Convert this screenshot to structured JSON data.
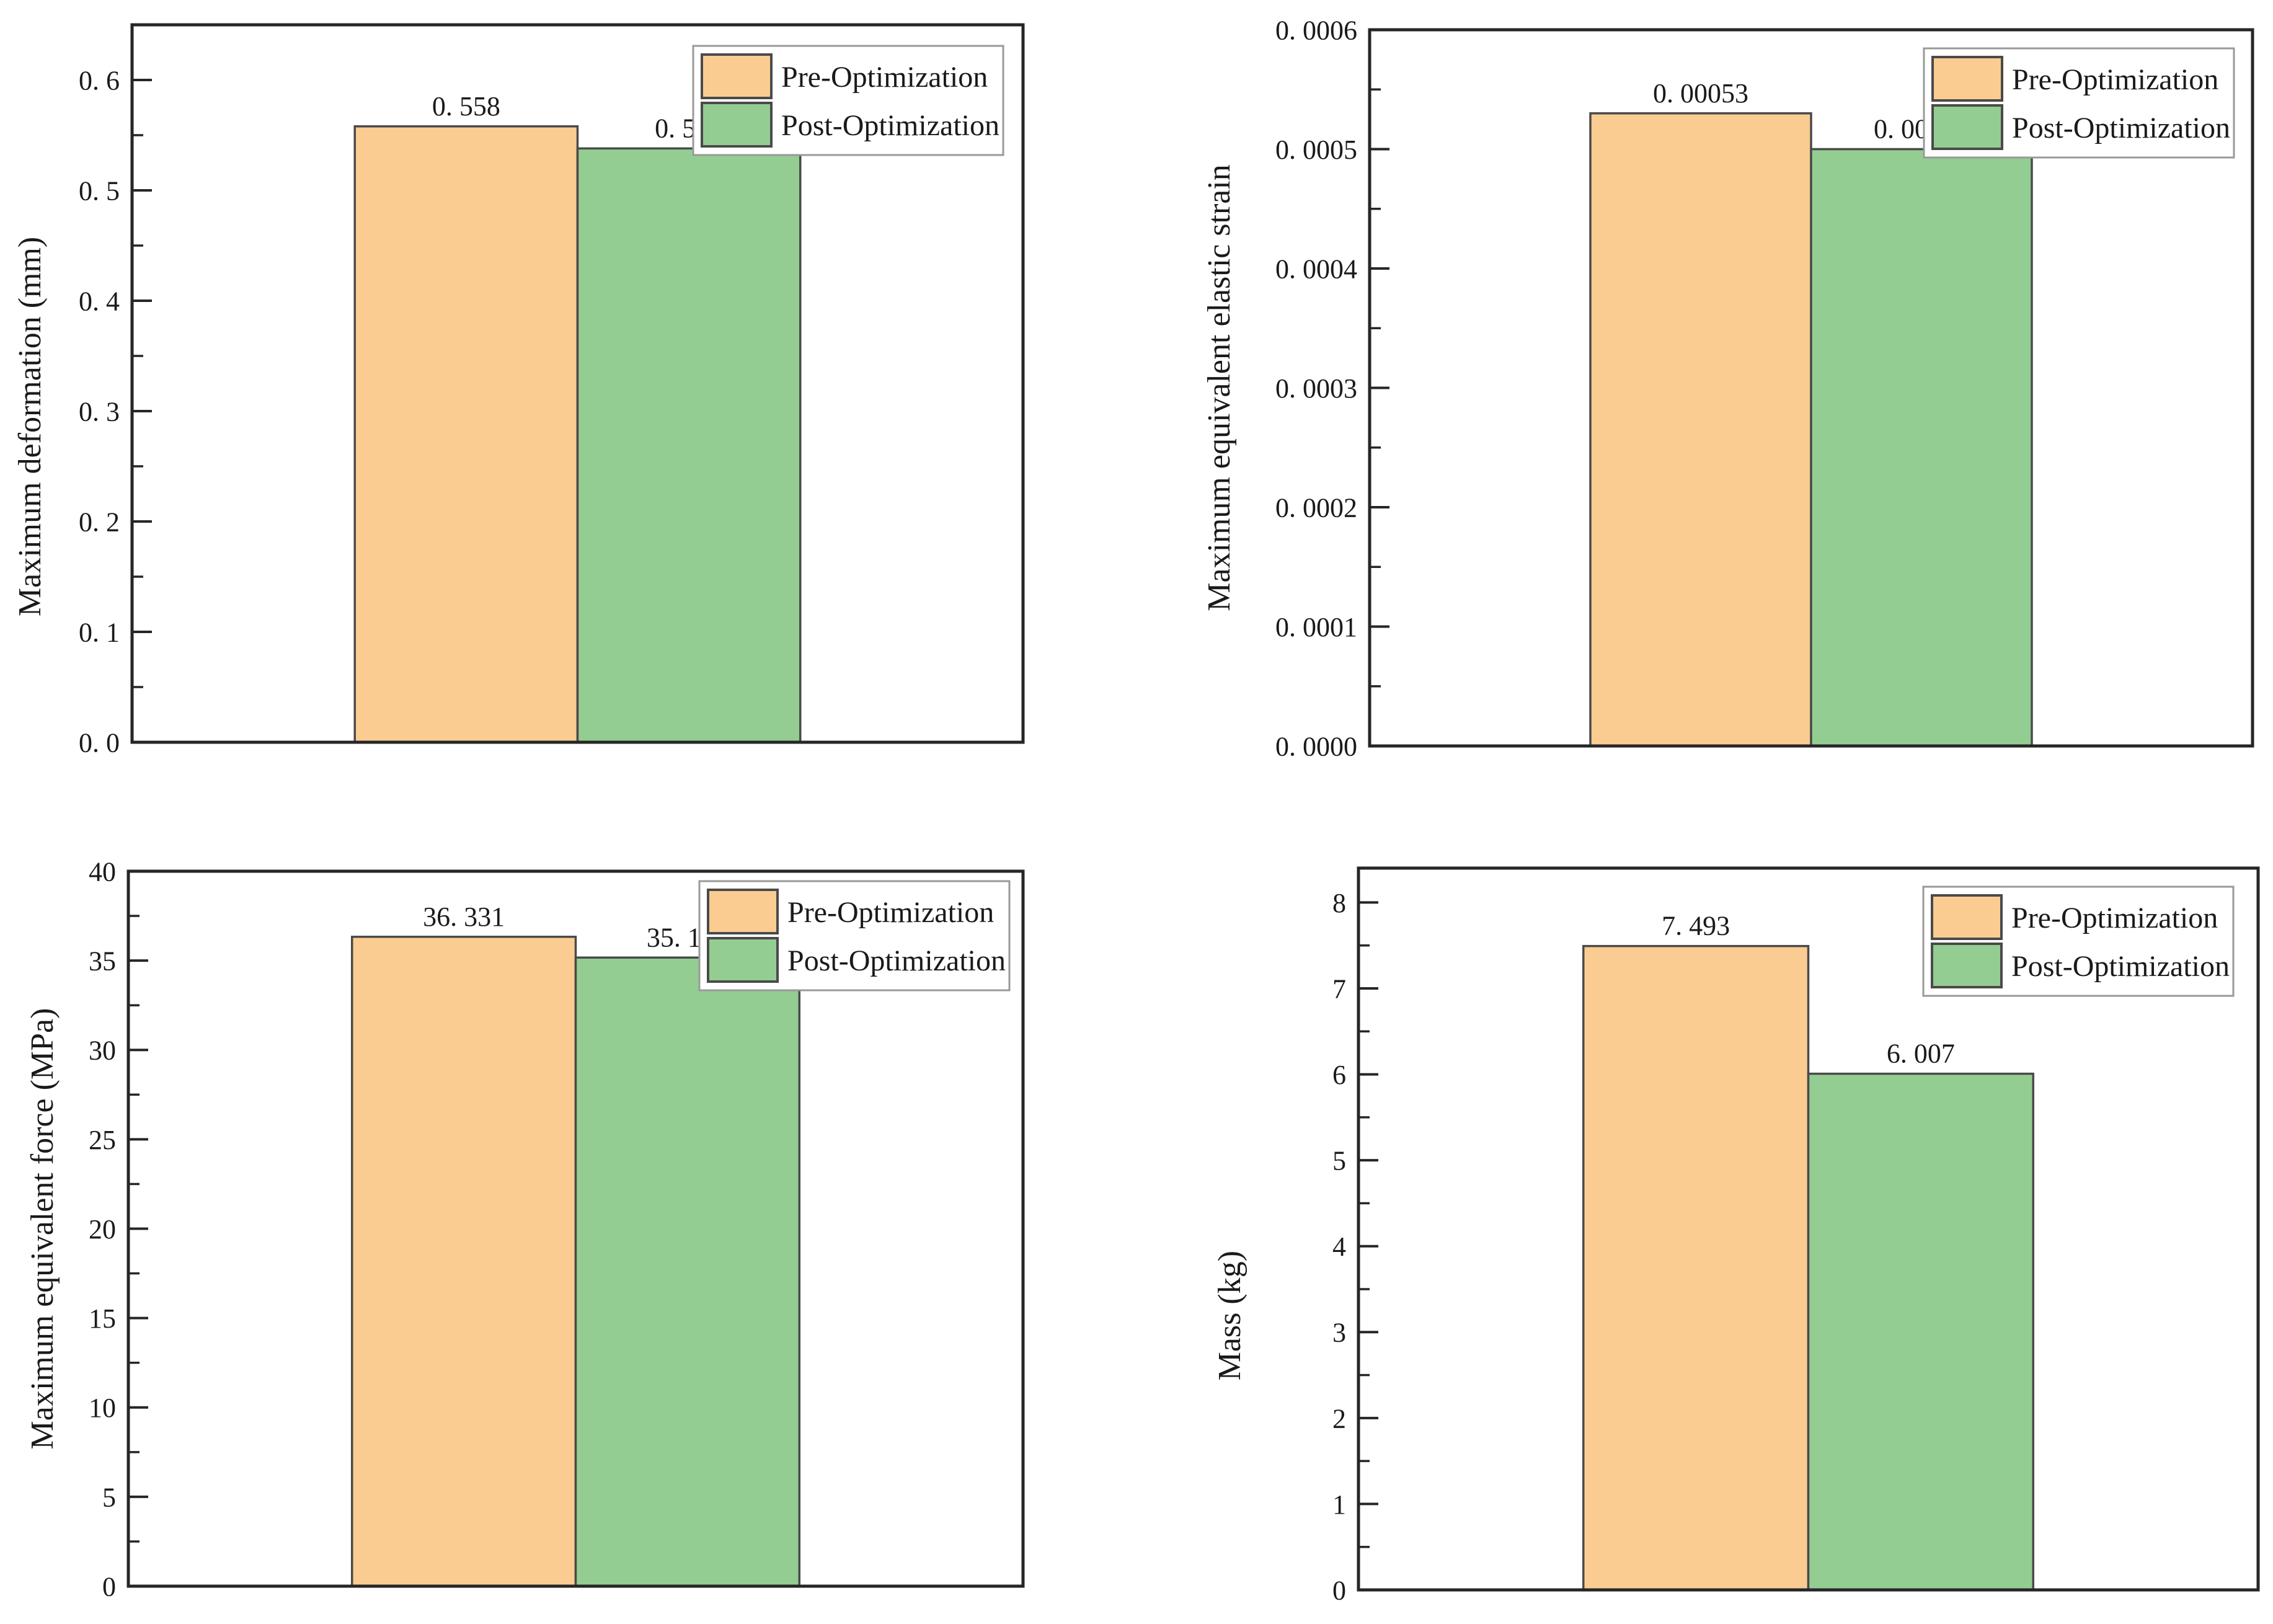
{
  "page": {
    "background": "#ffffff",
    "description": "2x2 grid of pre/post optimization comparison bar charts"
  },
  "colors": {
    "pre_fill": "#FACC92",
    "post_fill": "#94CD92",
    "bar_stroke": "#4a4a4a",
    "axis_stroke": "#262626",
    "text": "#1a1a1a",
    "legend_border": "#999999",
    "legend_fill": "#ffffff"
  },
  "legend": {
    "labels": [
      "Pre-Optimization",
      "Post-Optimization"
    ],
    "position": "upper right"
  },
  "chart_data": [
    {
      "type": "bar",
      "title": "",
      "xlabel": "",
      "ylabel": "Maximum deformation (mm)",
      "categories": [
        "Pre-Optimization",
        "Post-Optimization"
      ],
      "values": [
        0.558,
        0.538
      ],
      "value_labels": [
        "0. 558",
        "0. 538"
      ],
      "ylim": [
        0,
        0.65
      ],
      "yticks": [
        0.0,
        0.1,
        0.2,
        0.3,
        0.4,
        0.5,
        0.6
      ],
      "ytick_labels": [
        "0. 0",
        "0. 1",
        "0. 2",
        "0. 3",
        "0. 4",
        "0. 5",
        "0. 6"
      ],
      "minor_tick_step": 0.05,
      "grid": false,
      "legend_entries": [
        "Pre-Optimization",
        "Post-Optimization"
      ],
      "legend_position": "upper right"
    },
    {
      "type": "bar",
      "title": "",
      "xlabel": "",
      "ylabel": "Maximum equivalent elastic strain",
      "categories": [
        "Pre-Optimization",
        "Post-Optimization"
      ],
      "values": [
        0.00053,
        0.0005
      ],
      "value_labels": [
        "0. 00053",
        "0. 00050"
      ],
      "ylim": [
        0,
        0.0006
      ],
      "yticks": [
        0.0,
        0.0001,
        0.0002,
        0.0003,
        0.0004,
        0.0005,
        0.0006
      ],
      "ytick_labels": [
        "0. 0000",
        "0. 0001",
        "0. 0002",
        "0. 0003",
        "0. 0004",
        "0. 0005",
        "0. 0006"
      ],
      "minor_tick_step": 5e-05,
      "grid": false,
      "legend_entries": [
        "Pre-Optimization",
        "Post-Optimization"
      ],
      "legend_position": "upper right"
    },
    {
      "type": "bar",
      "title": "",
      "xlabel": "",
      "ylabel": "Maximum equivalent force (MPa)",
      "categories": [
        "Pre-Optimization",
        "Post-Optimization"
      ],
      "values": [
        36.331,
        35.169
      ],
      "value_labels": [
        "36. 331",
        "35. 169"
      ],
      "ylim": [
        0,
        40
      ],
      "yticks": [
        0,
        5,
        10,
        15,
        20,
        25,
        30,
        35,
        40
      ],
      "ytick_labels": [
        "0",
        "5",
        "10",
        "15",
        "20",
        "25",
        "30",
        "35",
        "40"
      ],
      "minor_tick_step": 2.5,
      "grid": false,
      "legend_entries": [
        "Pre-Optimization",
        "Post-Optimization"
      ],
      "legend_position": "upper right"
    },
    {
      "type": "bar",
      "title": "",
      "xlabel": "",
      "ylabel": "Mass (kg)",
      "categories": [
        "Pre-Optimization",
        "Post-Optimization"
      ],
      "values": [
        7.493,
        6.007
      ],
      "value_labels": [
        "7. 493",
        "6. 007"
      ],
      "ylim": [
        0,
        8.4
      ],
      "yticks": [
        0,
        1,
        2,
        3,
        4,
        5,
        6,
        7,
        8
      ],
      "ytick_labels": [
        "0",
        "1",
        "2",
        "3",
        "4",
        "5",
        "6",
        "7",
        "8"
      ],
      "minor_tick_step": 0.5,
      "grid": false,
      "legend_entries": [
        "Pre-Optimization",
        "Post-Optimization"
      ],
      "legend_position": "upper right"
    }
  ]
}
